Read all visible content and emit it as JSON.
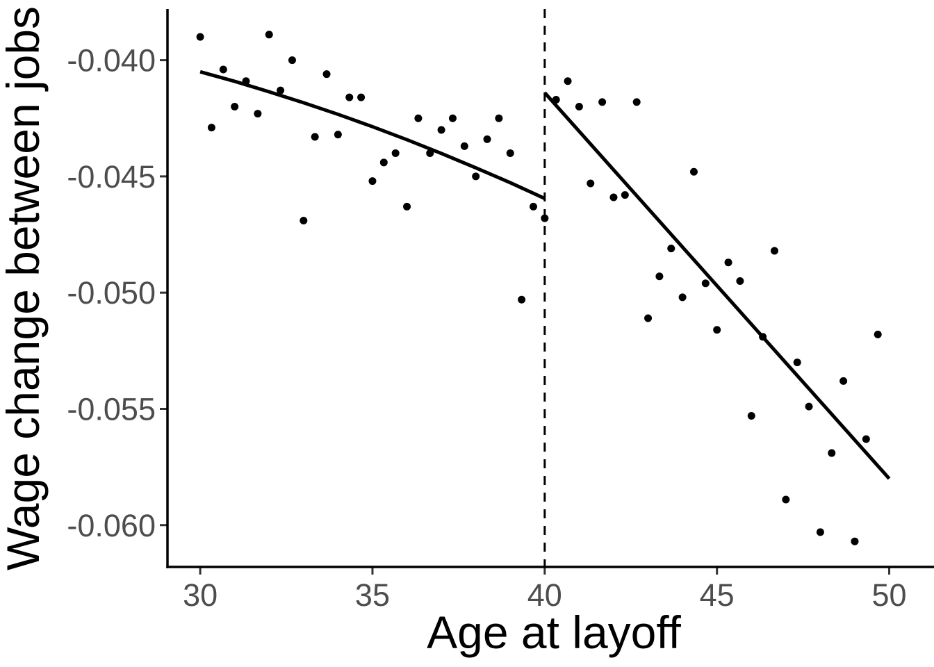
{
  "chart_data": {
    "type": "scatter",
    "title": "",
    "xlabel": "Age at layoff",
    "ylabel": "Wage change between jobs",
    "xlim": [
      29.05,
      51.3
    ],
    "ylim": [
      -0.0618,
      -0.0378
    ],
    "grid": "off",
    "legend": "none",
    "cutoff_x": 40,
    "x_ticks": {
      "values": [
        30,
        35,
        40,
        45,
        50
      ],
      "labels": [
        "30",
        "35",
        "40",
        "45",
        "50"
      ]
    },
    "y_ticks": {
      "values": [
        -0.04,
        -0.045,
        -0.05,
        -0.055,
        -0.06
      ],
      "labels": [
        "-0.040",
        "-0.045",
        "-0.050",
        "-0.055",
        "-0.060"
      ]
    },
    "series": [
      {
        "name": "binned-means-below-cutoff",
        "kind": "scatter",
        "points": [
          [
            30.0,
            -0.039
          ],
          [
            30.33,
            -0.0429
          ],
          [
            30.67,
            -0.0404
          ],
          [
            31.0,
            -0.042
          ],
          [
            31.33,
            -0.0409
          ],
          [
            31.67,
            -0.0423
          ],
          [
            32.0,
            -0.0389
          ],
          [
            32.33,
            -0.0413
          ],
          [
            32.67,
            -0.04
          ],
          [
            33.0,
            -0.0469
          ],
          [
            33.33,
            -0.0433
          ],
          [
            33.67,
            -0.0406
          ],
          [
            34.0,
            -0.0432
          ],
          [
            34.33,
            -0.0416
          ],
          [
            34.67,
            -0.0416
          ],
          [
            35.0,
            -0.0452
          ],
          [
            35.33,
            -0.0444
          ],
          [
            35.67,
            -0.044
          ],
          [
            36.0,
            -0.0463
          ],
          [
            36.33,
            -0.0425
          ],
          [
            36.67,
            -0.044
          ],
          [
            37.0,
            -0.043
          ],
          [
            37.33,
            -0.0425
          ],
          [
            37.67,
            -0.0437
          ],
          [
            38.0,
            -0.045
          ],
          [
            38.33,
            -0.0434
          ],
          [
            38.67,
            -0.0425
          ],
          [
            39.0,
            -0.044
          ],
          [
            39.33,
            -0.0503
          ],
          [
            39.67,
            -0.0463
          ]
        ]
      },
      {
        "name": "binned-means-above-cutoff",
        "kind": "scatter",
        "points": [
          [
            40.0,
            -0.0468
          ],
          [
            40.33,
            -0.0417
          ],
          [
            40.67,
            -0.0409
          ],
          [
            41.0,
            -0.042
          ],
          [
            41.33,
            -0.0453
          ],
          [
            41.67,
            -0.0418
          ],
          [
            42.0,
            -0.0459
          ],
          [
            42.33,
            -0.0458
          ],
          [
            42.67,
            -0.0418
          ],
          [
            43.0,
            -0.0511
          ],
          [
            43.33,
            -0.0493
          ],
          [
            43.67,
            -0.0481
          ],
          [
            44.0,
            -0.0502
          ],
          [
            44.33,
            -0.0448
          ],
          [
            44.67,
            -0.0496
          ],
          [
            45.0,
            -0.0516
          ],
          [
            45.33,
            -0.0487
          ],
          [
            45.67,
            -0.0495
          ],
          [
            46.0,
            -0.0553
          ],
          [
            46.33,
            -0.0519
          ],
          [
            46.67,
            -0.0482
          ],
          [
            47.0,
            -0.0589
          ],
          [
            47.33,
            -0.053
          ],
          [
            47.67,
            -0.0549
          ],
          [
            48.0,
            -0.0603
          ],
          [
            48.33,
            -0.0569
          ],
          [
            48.67,
            -0.0538
          ],
          [
            49.0,
            -0.0607
          ],
          [
            49.33,
            -0.0563
          ],
          [
            49.67,
            -0.0518
          ]
        ]
      },
      {
        "name": "fit-below-cutoff",
        "kind": "line",
        "points": [
          [
            30.0,
            -0.0405
          ],
          [
            31.0,
            -0.04091
          ],
          [
            32.0,
            -0.04136
          ],
          [
            33.0,
            -0.04183
          ],
          [
            34.0,
            -0.04233
          ],
          [
            35.0,
            -0.04286
          ],
          [
            36.0,
            -0.04342
          ],
          [
            37.0,
            -0.04401
          ],
          [
            38.0,
            -0.04463
          ],
          [
            39.0,
            -0.04527
          ],
          [
            40.0,
            -0.04595
          ]
        ]
      },
      {
        "name": "fit-above-cutoff",
        "kind": "line",
        "points": [
          [
            40.0,
            -0.0414
          ],
          [
            50.0,
            -0.058
          ]
        ]
      }
    ],
    "colors": {
      "points": "#000000",
      "fit_lines": "#000000",
      "cutoff_line": "#000000",
      "axis_lines": "#000000",
      "tick_marks": "#333333",
      "tick_labels": "#4d4d4d",
      "axis_titles": "#000000",
      "background": "#ffffff"
    }
  }
}
